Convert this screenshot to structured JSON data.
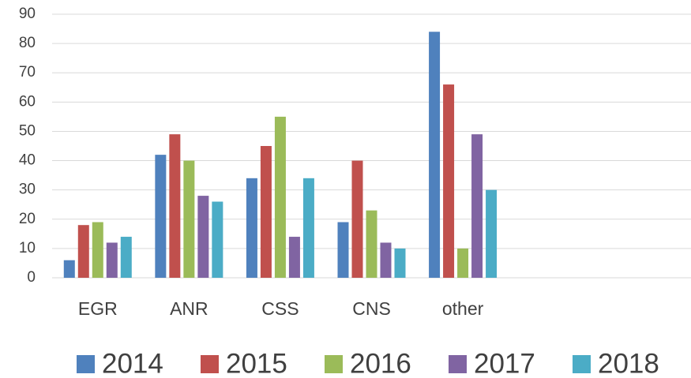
{
  "chart_data": {
    "type": "bar",
    "categories": [
      "EGR",
      "ANR",
      "CSS",
      "CNS",
      "other",
      null,
      null
    ],
    "series": [
      {
        "name": "2014",
        "color": "#4f81bd",
        "values": [
          6,
          42,
          34,
          19,
          84,
          null,
          null
        ]
      },
      {
        "name": "2015",
        "color": "#c0504d",
        "values": [
          18,
          49,
          45,
          40,
          66,
          null,
          null
        ]
      },
      {
        "name": "2016",
        "color": "#9bbb59",
        "values": [
          19,
          40,
          55,
          23,
          10,
          null,
          null
        ]
      },
      {
        "name": "2017",
        "color": "#8064a2",
        "values": [
          12,
          28,
          14,
          12,
          49,
          null,
          null
        ]
      },
      {
        "name": "2018",
        "color": "#4bacc6",
        "values": [
          14,
          26,
          34,
          10,
          30,
          null,
          null
        ]
      }
    ],
    "ylim": [
      0,
      90
    ],
    "yticks": [
      0,
      10,
      20,
      30,
      40,
      50,
      60,
      70,
      80,
      90
    ],
    "grid": true,
    "legend": "bottom"
  }
}
